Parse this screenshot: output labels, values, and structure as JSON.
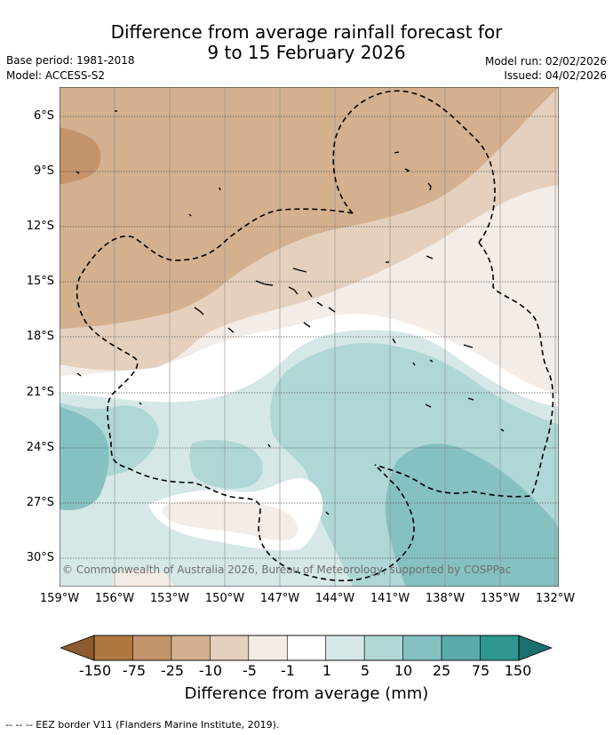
{
  "title": {
    "line1": "Difference from average rainfall forecast for",
    "line2": "9 to 15 February 2026"
  },
  "meta": {
    "base_period": "Base period: 1981-2018",
    "model": "Model: ACCESS-S2",
    "model_run": "Model run: 02/02/2026",
    "issued": "Issued: 04/02/2026"
  },
  "map": {
    "lat_labels": [
      "6°S",
      "9°S",
      "12°S",
      "15°S",
      "18°S",
      "21°S",
      "24°S",
      "27°S",
      "30°S"
    ],
    "lon_labels": [
      "159°W",
      "156°W",
      "153°W",
      "150°W",
      "147°W",
      "144°W",
      "141°W",
      "138°W",
      "135°W",
      "132°W"
    ],
    "copyright": "© Commonwealth of Australia 2026, Bureau of Meteorology, supported by COSPPac"
  },
  "legend": {
    "title": "Difference from average (mm)",
    "tick_labels": [
      "-150",
      "-75",
      "-25",
      "-10",
      "-5",
      "-1",
      "1",
      "5",
      "10",
      "25",
      "75",
      "150"
    ],
    "colors": [
      "#8c5a2e",
      "#b07841",
      "#c3936a",
      "#d4b08e",
      "#e4d0bd",
      "#f4ece6",
      "#ffffff",
      "#d5e8e7",
      "#afd7d6",
      "#85c1c0",
      "#5aacab",
      "#2f9691",
      "#1b6f6c"
    ]
  },
  "footnote": "--  --  -- EEZ border V11 (Flanders Marine Institute, 2019)."
}
